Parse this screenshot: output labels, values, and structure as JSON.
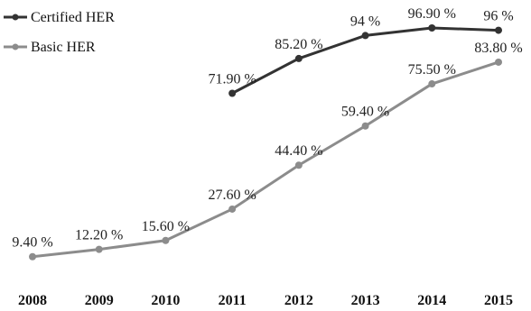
{
  "chart_data": {
    "type": "line",
    "x": [
      "2008",
      "2009",
      "2010",
      "2011",
      "2012",
      "2013",
      "2014",
      "2015"
    ],
    "series": [
      {
        "name": "Certified HER",
        "color": "#333333",
        "values": [
          null,
          null,
          null,
          71.9,
          85.2,
          94,
          96.9,
          96
        ],
        "labels": [
          "",
          "",
          "",
          "71.90 %",
          "85.20 %",
          "94 %",
          "96.90 %",
          "96 %"
        ]
      },
      {
        "name": "Basic HER",
        "color": "#8c8c8c",
        "values": [
          9.4,
          12.2,
          15.6,
          27.6,
          44.4,
          59.4,
          75.5,
          83.8
        ],
        "labels": [
          "9.40 %",
          "12.20 %",
          "15.60 %",
          "27.60 %",
          "44.40 %",
          "59.40 %",
          "75.50 %",
          "83.80 %"
        ]
      }
    ],
    "ylim": [
      0,
      100
    ],
    "grid": false,
    "legend": "top-left"
  }
}
